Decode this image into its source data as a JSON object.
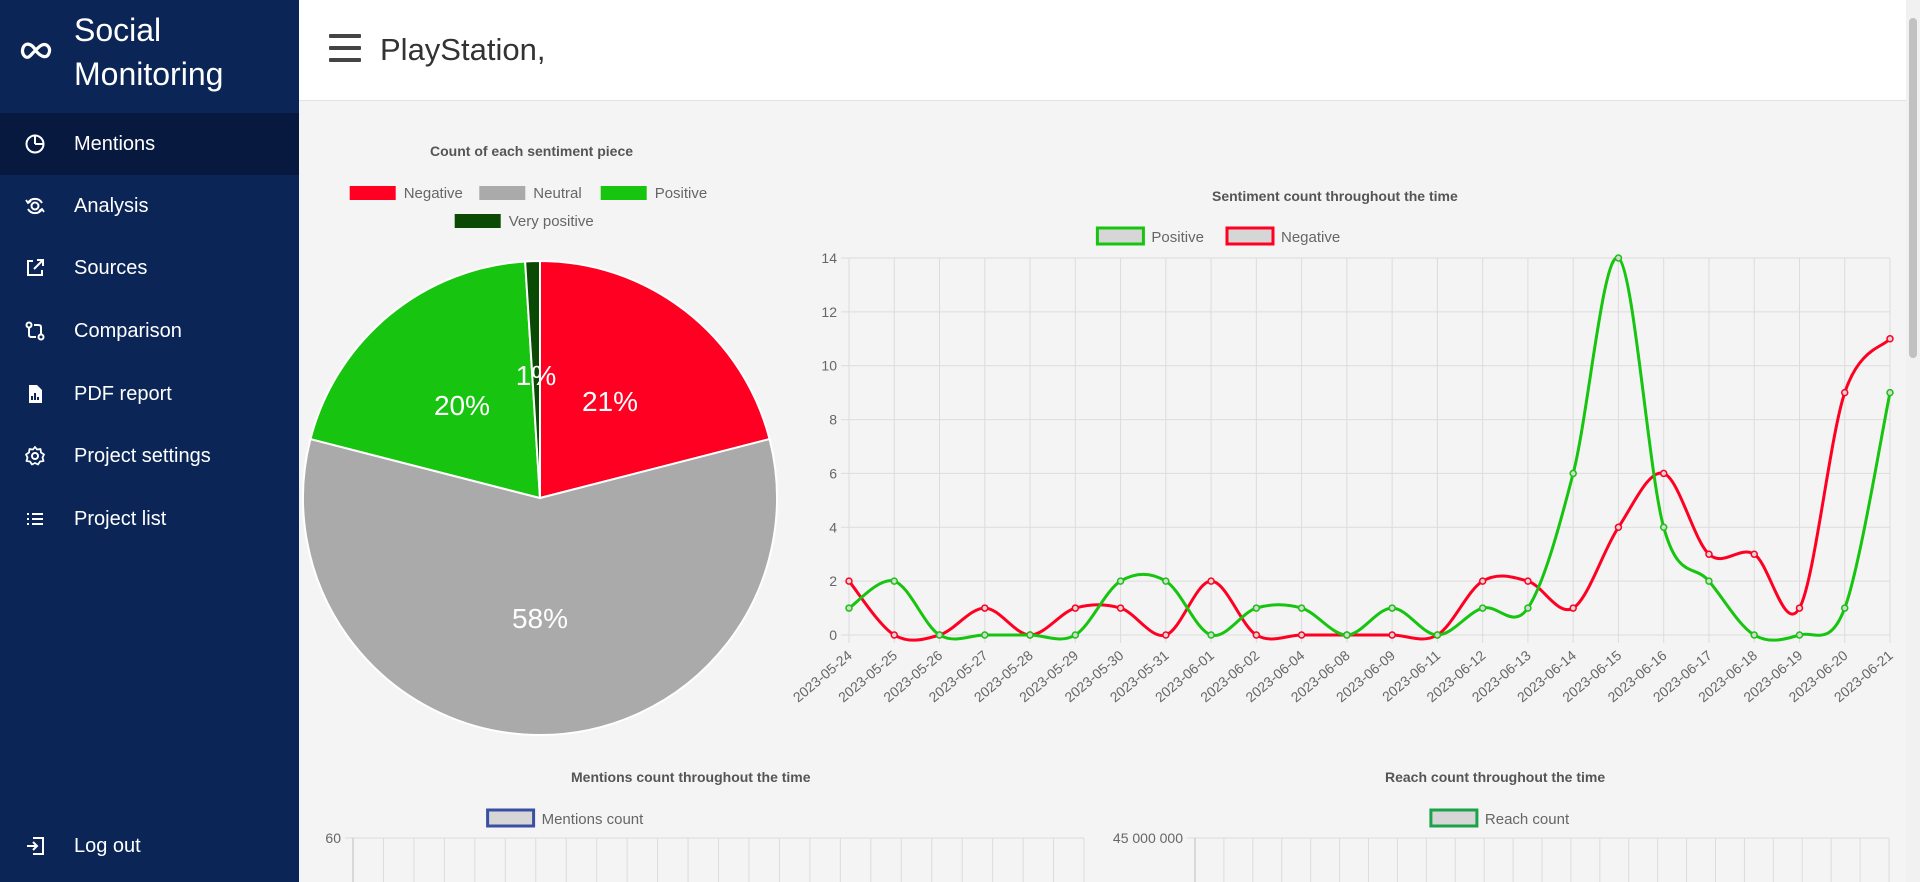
{
  "sidebar": {
    "brand_line1": "Social",
    "brand_line2": "Monitoring",
    "items": [
      {
        "label": "Mentions",
        "icon": "pie-chart-icon"
      },
      {
        "label": "Analysis",
        "icon": "analysis-icon"
      },
      {
        "label": "Sources",
        "icon": "external-link-icon"
      },
      {
        "label": "Comparison",
        "icon": "compare-icon"
      },
      {
        "label": "PDF report",
        "icon": "pdf-report-icon"
      },
      {
        "label": "Project settings",
        "icon": "gear-icon"
      },
      {
        "label": "Project list",
        "icon": "list-icon"
      }
    ],
    "logout_label": "Log out"
  },
  "header": {
    "title": "PlayStation,"
  },
  "colors": {
    "sidebar": "#0b2557",
    "negative": "#ff0022",
    "neutral": "#aaaaaa",
    "positive": "#17c40f",
    "very_positive": "#0b4a05",
    "mentions": "#3a4fa3",
    "reach": "#1aa34a"
  },
  "chart_data": [
    {
      "type": "pie",
      "title": "Count of each sentiment piece",
      "legend": [
        "Negative",
        "Neutral",
        "Positive",
        "Very positive"
      ],
      "values": [
        21,
        58,
        20,
        1
      ],
      "labels": [
        "21%",
        "58%",
        "20%",
        "1%"
      ]
    },
    {
      "type": "line",
      "title": "Sentiment count throughout the time",
      "categories": [
        "2023-05-24",
        "2023-05-25",
        "2023-05-26",
        "2023-05-27",
        "2023-05-28",
        "2023-05-29",
        "2023-05-30",
        "2023-05-31",
        "2023-06-01",
        "2023-06-02",
        "2023-06-04",
        "2023-06-08",
        "2023-06-09",
        "2023-06-11",
        "2023-06-12",
        "2023-06-13",
        "2023-06-14",
        "2023-06-15",
        "2023-06-16",
        "2023-06-17",
        "2023-06-18",
        "2023-06-19",
        "2023-06-20",
        "2023-06-21"
      ],
      "series": [
        {
          "name": "Positive",
          "values": [
            1,
            2,
            0,
            0,
            0,
            0,
            2,
            2,
            0,
            1,
            1,
            0,
            1,
            0,
            1,
            1,
            6,
            14,
            4,
            2,
            0,
            0,
            1,
            9
          ]
        },
        {
          "name": "Negative",
          "values": [
            2,
            0,
            0,
            1,
            0,
            1,
            1,
            0,
            2,
            0,
            0,
            0,
            0,
            0,
            2,
            2,
            1,
            4,
            6,
            3,
            3,
            1,
            9,
            11
          ]
        }
      ],
      "ylim": [
        0,
        14
      ],
      "yticks": [
        "0",
        "2",
        "4",
        "6",
        "8",
        "10",
        "12",
        "14"
      ]
    },
    {
      "type": "bar",
      "title": "Mentions count throughout the time",
      "legend": [
        "Mentions count"
      ],
      "ytick_top": "60"
    },
    {
      "type": "bar",
      "title": "Reach count throughout the time",
      "legend": [
        "Reach count"
      ],
      "ytick_top": "45 000 000"
    }
  ]
}
